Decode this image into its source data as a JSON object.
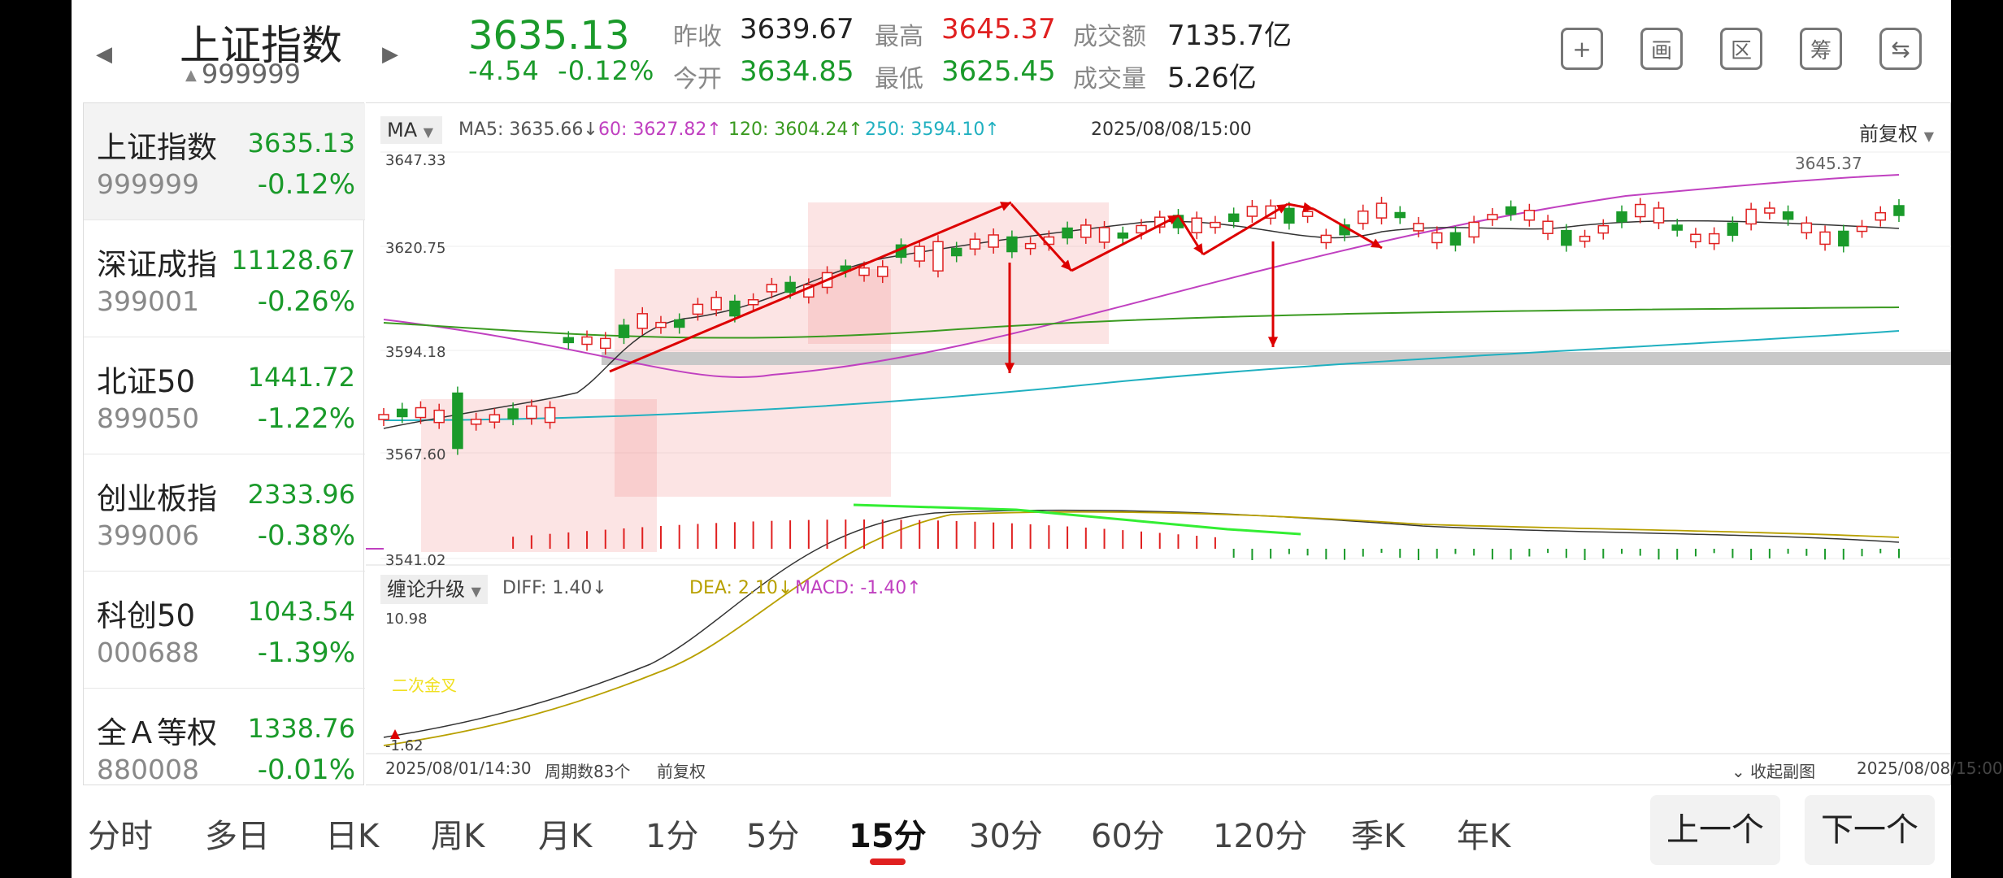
{
  "header": {
    "name": "上证指数",
    "code": "999999",
    "price": "3635.13",
    "change": "-4.54",
    "change_pct": "-0.12%",
    "stats": {
      "prev_close_label": "昨收",
      "prev_close": "3639.67",
      "open_label": "今开",
      "open": "3634.85",
      "high_label": "最高",
      "high": "3645.37",
      "low_label": "最低",
      "low": "3625.45",
      "amount_label": "成交额",
      "amount": "7135.7亿",
      "volume_label": "成交量",
      "volume": "5.26亿"
    },
    "tools": [
      {
        "icon": "add-icon",
        "glyph": "+"
      },
      {
        "icon": "draw-icon",
        "glyph": "画"
      },
      {
        "icon": "range-icon",
        "glyph": "区"
      },
      {
        "icon": "chips-icon",
        "glyph": "筹"
      },
      {
        "icon": "rotate-screen-icon",
        "glyph": "⇆"
      }
    ]
  },
  "sidebar": [
    {
      "name": "上证指数",
      "code": "999999",
      "price": "3635.13",
      "pct": "-0.12%"
    },
    {
      "name": "深证成指",
      "code": "399001",
      "price": "11128.67",
      "pct": "-0.26%"
    },
    {
      "name": "北证50",
      "code": "899050",
      "price": "1441.72",
      "pct": "-1.22%"
    },
    {
      "name": "创业板指",
      "code": "399006",
      "price": "2333.96",
      "pct": "-0.38%"
    },
    {
      "name": "科创50",
      "code": "000688",
      "price": "1043.54",
      "pct": "-1.39%"
    },
    {
      "name": "全Ａ等权",
      "code": "880008",
      "price": "1338.76",
      "pct": "-0.01%"
    }
  ],
  "chart": {
    "ma_selector": "MA",
    "ma_legend": {
      "ma5": "MA5: 3635.66↓",
      "ma60": "60: 3627.82↑",
      "ma120": "120: 3604.24↑",
      "ma250": "250: 3594.10↑"
    },
    "cursor_time": "2025/08/08/15:00",
    "adjust_label": "前复权",
    "y_ticks": [
      "3647.33",
      "3620.75",
      "3594.18",
      "3567.60",
      "3541.02"
    ],
    "high_marker": "3645.37",
    "indicator_selector": "缠论升级",
    "macd_legend": {
      "diff": "DIFF: 1.40↓",
      "dea": "DEA: 2.10↓",
      "macd": "MACD: -1.40↑"
    },
    "macd_top": "10.98",
    "macd_bottom": "-1.62",
    "macd_annotation": "二次金叉",
    "start_time": "2025/08/01/14:30",
    "period_count": "周期数83个",
    "bottom_adjust": "前复权",
    "collapse_label": "收起副图",
    "end_time": "2025/08/08/15:00",
    "colors": {
      "up": "#e02020",
      "down": "#1a9a2a",
      "ma5": "#333333",
      "ma60": "#c040c0",
      "ma120": "#3a9a20",
      "ma250": "#20b0c0",
      "dea": "#b8a000",
      "signal": "#33ee33"
    }
  },
  "tabs": [
    {
      "label": "分时"
    },
    {
      "label": "多日"
    },
    {
      "label": "日K"
    },
    {
      "label": "周K"
    },
    {
      "label": "月K"
    },
    {
      "label": "1分"
    },
    {
      "label": "5分"
    },
    {
      "label": "15分"
    },
    {
      "label": "30分"
    },
    {
      "label": "60分"
    },
    {
      "label": "120分"
    },
    {
      "label": "季K"
    },
    {
      "label": "年K"
    }
  ],
  "active_tab": "15分",
  "nav": {
    "prev": "上一个",
    "next": "下一个"
  }
}
